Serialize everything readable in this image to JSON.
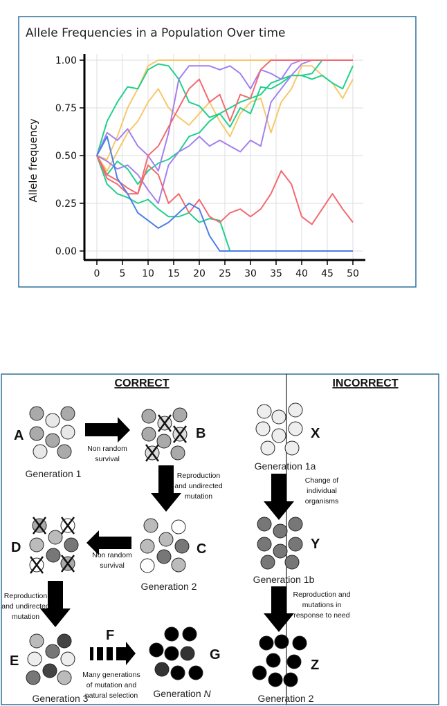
{
  "chart_data": {
    "type": "line",
    "title": "Allele Frequencies in a Population Over time",
    "xlabel": "",
    "ylabel": "Allele frequency",
    "xlim": [
      0,
      50
    ],
    "ylim": [
      0,
      1
    ],
    "grid": true,
    "x_ticks": [
      "0",
      "5",
      "10",
      "15",
      "20",
      "25",
      "30",
      "35",
      "40",
      "45",
      "50"
    ],
    "y_ticks": [
      "0.00",
      "0.25",
      "0.50",
      "0.75",
      "1.00"
    ],
    "x": [
      0,
      2,
      4,
      6,
      8,
      10,
      12,
      14,
      16,
      18,
      20,
      22,
      24,
      26,
      28,
      30,
      32,
      34,
      36,
      38,
      40,
      42,
      44,
      46,
      48,
      50
    ],
    "series": [
      {
        "color": "#f7c86a",
        "values": [
          0.5,
          0.48,
          0.6,
          0.75,
          0.85,
          0.97,
          1,
          1,
          1,
          1,
          1,
          1,
          1,
          1,
          1,
          1,
          1,
          1,
          1,
          1,
          1,
          1,
          1,
          1,
          1,
          1
        ]
      },
      {
        "color": "#f7c86a",
        "values": [
          0.5,
          0.42,
          0.52,
          0.62,
          0.68,
          0.78,
          0.85,
          0.75,
          0.7,
          0.66,
          0.72,
          0.78,
          0.68,
          0.6,
          0.72,
          0.78,
          0.8,
          0.62,
          0.78,
          0.85,
          0.97,
          0.97,
          0.92,
          0.88,
          0.8,
          0.9
        ]
      },
      {
        "color": "#1fd08c",
        "values": [
          0.5,
          0.68,
          0.78,
          0.86,
          0.85,
          0.95,
          0.98,
          0.97,
          0.9,
          0.78,
          0.76,
          0.7,
          0.72,
          0.65,
          0.75,
          0.72,
          0.86,
          0.85,
          0.88,
          0.92,
          0.92,
          0.9,
          0.92,
          0.88,
          0.85,
          0.97
        ]
      },
      {
        "color": "#1fd08c",
        "values": [
          0.5,
          0.4,
          0.47,
          0.43,
          0.35,
          0.42,
          0.46,
          0.48,
          0.52,
          0.6,
          0.62,
          0.68,
          0.72,
          0.75,
          0.78,
          0.8,
          0.82,
          0.88,
          0.9,
          0.92,
          0.92,
          0.93,
          1,
          1,
          1,
          1
        ]
      },
      {
        "color": "#1fd08c",
        "values": [
          0.5,
          0.35,
          0.3,
          0.28,
          0.25,
          0.27,
          0.22,
          0.18,
          0.18,
          0.2,
          0.15,
          0.17,
          0.16,
          0,
          0,
          0,
          0,
          0,
          0,
          0,
          0,
          0,
          0,
          0,
          0,
          0
        ]
      },
      {
        "color": "#a27ff0",
        "values": [
          0.5,
          0.62,
          0.58,
          0.64,
          0.55,
          0.5,
          0.42,
          0.62,
          0.9,
          0.97,
          0.97,
          0.97,
          0.95,
          0.97,
          0.93,
          0.85,
          0.95,
          0.93,
          0.9,
          0.98,
          1,
          1,
          1,
          1,
          1,
          1
        ]
      },
      {
        "color": "#a27ff0",
        "values": [
          0.5,
          0.47,
          0.43,
          0.45,
          0.4,
          0.32,
          0.25,
          0.45,
          0.52,
          0.55,
          0.6,
          0.55,
          0.58,
          0.55,
          0.52,
          0.58,
          0.55,
          0.78,
          0.85,
          0.92,
          0.98,
          1,
          1,
          1,
          1,
          1
        ]
      },
      {
        "color": "#f26a70",
        "values": [
          0.5,
          0.4,
          0.37,
          0.33,
          0.3,
          0.5,
          0.55,
          0.65,
          0.75,
          0.85,
          0.9,
          0.78,
          0.82,
          0.68,
          0.82,
          0.8,
          0.95,
          1,
          1,
          1,
          1,
          1,
          1,
          1,
          1,
          1
        ]
      },
      {
        "color": "#f26a70",
        "values": [
          0.5,
          0.38,
          0.35,
          0.3,
          0.3,
          0.45,
          0.4,
          0.25,
          0.3,
          0.2,
          0.27,
          0.18,
          0.15,
          0.2,
          0.22,
          0.18,
          0.22,
          0.3,
          0.42,
          0.35,
          0.18,
          0.14,
          0.22,
          0.3,
          0.22,
          0.15
        ]
      },
      {
        "color": "#4d7ce8",
        "values": [
          0.5,
          0.6,
          0.38,
          0.3,
          0.2,
          0.16,
          0.12,
          0.15,
          0.2,
          0.25,
          0.22,
          0.08,
          0,
          0,
          0,
          0,
          0,
          0,
          0,
          0,
          0,
          0,
          0,
          0,
          0,
          0
        ]
      }
    ]
  },
  "diagram": {
    "correct_heading": "CORRECT",
    "incorrect_heading": "INCORRECT",
    "letters": {
      "A": "A",
      "B": "B",
      "C": "C",
      "D": "D",
      "E": "E",
      "F": "F",
      "G": "G",
      "X": "X",
      "Y": "Y",
      "Z": "Z"
    },
    "gen1": "Generation 1",
    "gen2": "Generation 2",
    "gen3": "Generation 3",
    "genN_prefix": "Generation ",
    "genN_italic": "N",
    "gen1a": "Generation 1a",
    "gen1b": "Generation 1b",
    "gen2_incorrect": "Generation 2",
    "nonrandom1": [
      "Non random",
      "survival"
    ],
    "repro1": [
      "Reproduction",
      "and undirected",
      "mutation"
    ],
    "nonrandom2": [
      "Non random",
      "survival"
    ],
    "repro2": [
      "Reproduction",
      "and undirected",
      "mutation"
    ],
    "many_gens": [
      "Many generations",
      "of mutation and",
      "natural selection"
    ],
    "change": [
      "Change of",
      "individual",
      "organisms"
    ],
    "repro_need": [
      "Reproduction and",
      "mutations in",
      "response to need"
    ]
  }
}
